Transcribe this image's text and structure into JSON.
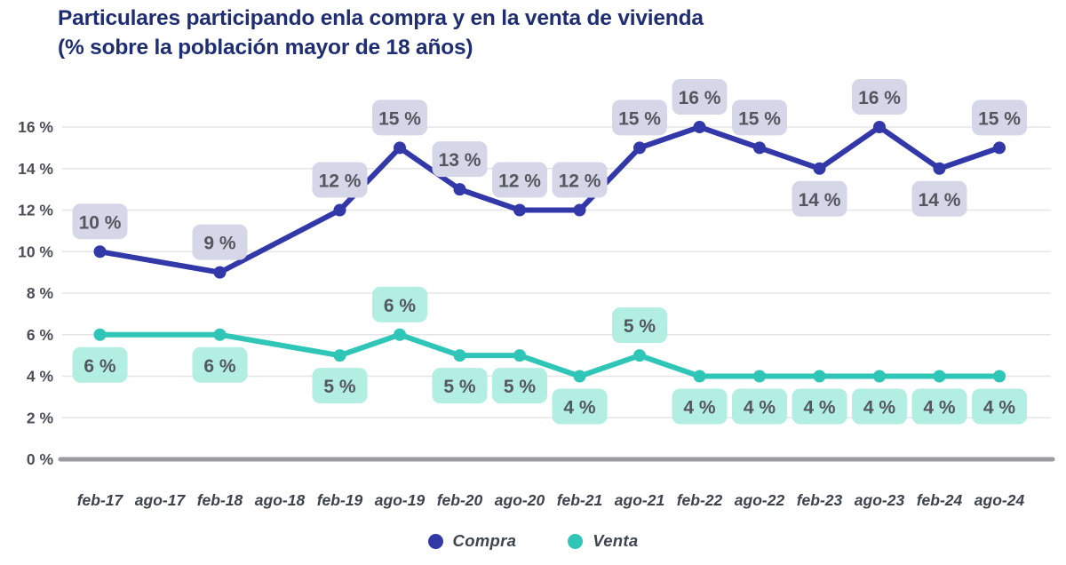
{
  "chart_data": {
    "type": "line",
    "title": "Particulares participando enla compra y en la venta de vivienda",
    "subtitle": "(% sobre la población mayor de 18 años)",
    "unit": "%",
    "title_color": "#1f2d73",
    "grid_color": "#e5e5e8",
    "axis_color": "#9b9ba1",
    "y_tick_color": "#4b4e57",
    "x_tick_color": "#3d434c",
    "value_label_text_color": "#54575e",
    "grid": true,
    "legend_position": "bottom",
    "ylim": [
      0,
      16
    ],
    "y_tick_step": 2,
    "y_tick_labels": [
      "0 %",
      "2 %",
      "4 %",
      "6 %",
      "8 %",
      "10 %",
      "12 %",
      "14 %",
      "16 %"
    ],
    "categories": [
      "feb-17",
      "ago-17",
      "feb-18",
      "ago-18",
      "feb-19",
      "ago-19",
      "feb-20",
      "ago-20",
      "feb-21",
      "ago-21",
      "feb-22",
      "ago-22",
      "feb-23",
      "ago-23",
      "feb-24",
      "ago-24"
    ],
    "series": [
      {
        "name": "Compra",
        "color": "#3238a8",
        "label_bg": "#d5d7e9",
        "points": [
          {
            "category": "feb-17",
            "index": 0,
            "value": 10,
            "label": "10 %",
            "label_pos": "above"
          },
          {
            "category": "feb-18",
            "index": 2,
            "value": 9,
            "label": "9 %",
            "label_pos": "above"
          },
          {
            "category": "feb-19",
            "index": 4,
            "value": 12,
            "label": "12 %",
            "label_pos": "above"
          },
          {
            "category": "ago-19",
            "index": 5,
            "value": 15,
            "label": "15 %",
            "label_pos": "above"
          },
          {
            "category": "feb-20",
            "index": 6,
            "value": 13,
            "label": "13 %",
            "label_pos": "above"
          },
          {
            "category": "ago-20",
            "index": 7,
            "value": 12,
            "label": "12 %",
            "label_pos": "above"
          },
          {
            "category": "feb-21",
            "index": 8,
            "value": 12,
            "label": "12 %",
            "label_pos": "above"
          },
          {
            "category": "ago-21",
            "index": 9,
            "value": 15,
            "label": "15 %",
            "label_pos": "above"
          },
          {
            "category": "feb-22",
            "index": 10,
            "value": 16,
            "label": "16 %",
            "label_pos": "above"
          },
          {
            "category": "ago-22",
            "index": 11,
            "value": 15,
            "label": "15 %",
            "label_pos": "above"
          },
          {
            "category": "feb-23",
            "index": 12,
            "value": 14,
            "label": "14 %",
            "label_pos": "below"
          },
          {
            "category": "ago-23",
            "index": 13,
            "value": 16,
            "label": "16 %",
            "label_pos": "above"
          },
          {
            "category": "feb-24",
            "index": 14,
            "value": 14,
            "label": "14 %",
            "label_pos": "below"
          },
          {
            "category": "ago-24",
            "index": 15,
            "value": 15,
            "label": "15 %",
            "label_pos": "above"
          }
        ]
      },
      {
        "name": "Venta",
        "color": "#2fc6b8",
        "label_bg": "#b2eee1",
        "points": [
          {
            "category": "feb-17",
            "index": 0,
            "value": 6,
            "label": "6 %",
            "label_pos": "below"
          },
          {
            "category": "feb-18",
            "index": 2,
            "value": 6,
            "label": "6 %",
            "label_pos": "below"
          },
          {
            "category": "feb-19",
            "index": 4,
            "value": 5,
            "label": "5 %",
            "label_pos": "below"
          },
          {
            "category": "ago-19",
            "index": 5,
            "value": 6,
            "label": "6 %",
            "label_pos": "above"
          },
          {
            "category": "feb-20",
            "index": 6,
            "value": 5,
            "label": "5 %",
            "label_pos": "below"
          },
          {
            "category": "ago-20",
            "index": 7,
            "value": 5,
            "label": "5 %",
            "label_pos": "below"
          },
          {
            "category": "feb-21",
            "index": 8,
            "value": 4,
            "label": "4 %",
            "label_pos": "below"
          },
          {
            "category": "ago-21",
            "index": 9,
            "value": 5,
            "label": "5 %",
            "label_pos": "above"
          },
          {
            "category": "feb-22",
            "index": 10,
            "value": 4,
            "label": "4 %",
            "label_pos": "below"
          },
          {
            "category": "ago-22",
            "index": 11,
            "value": 4,
            "label": "4 %",
            "label_pos": "below"
          },
          {
            "category": "feb-23",
            "index": 12,
            "value": 4,
            "label": "4 %",
            "label_pos": "below"
          },
          {
            "category": "ago-23",
            "index": 13,
            "value": 4,
            "label": "4 %",
            "label_pos": "below"
          },
          {
            "category": "feb-24",
            "index": 14,
            "value": 4,
            "label": "4 %",
            "label_pos": "below"
          },
          {
            "category": "ago-24",
            "index": 15,
            "value": 4,
            "label": "4 %",
            "label_pos": "below"
          }
        ]
      }
    ],
    "legend": [
      {
        "label": "Compra",
        "color": "#3238a8"
      },
      {
        "label": "Venta",
        "color": "#2fc6b8"
      }
    ]
  }
}
